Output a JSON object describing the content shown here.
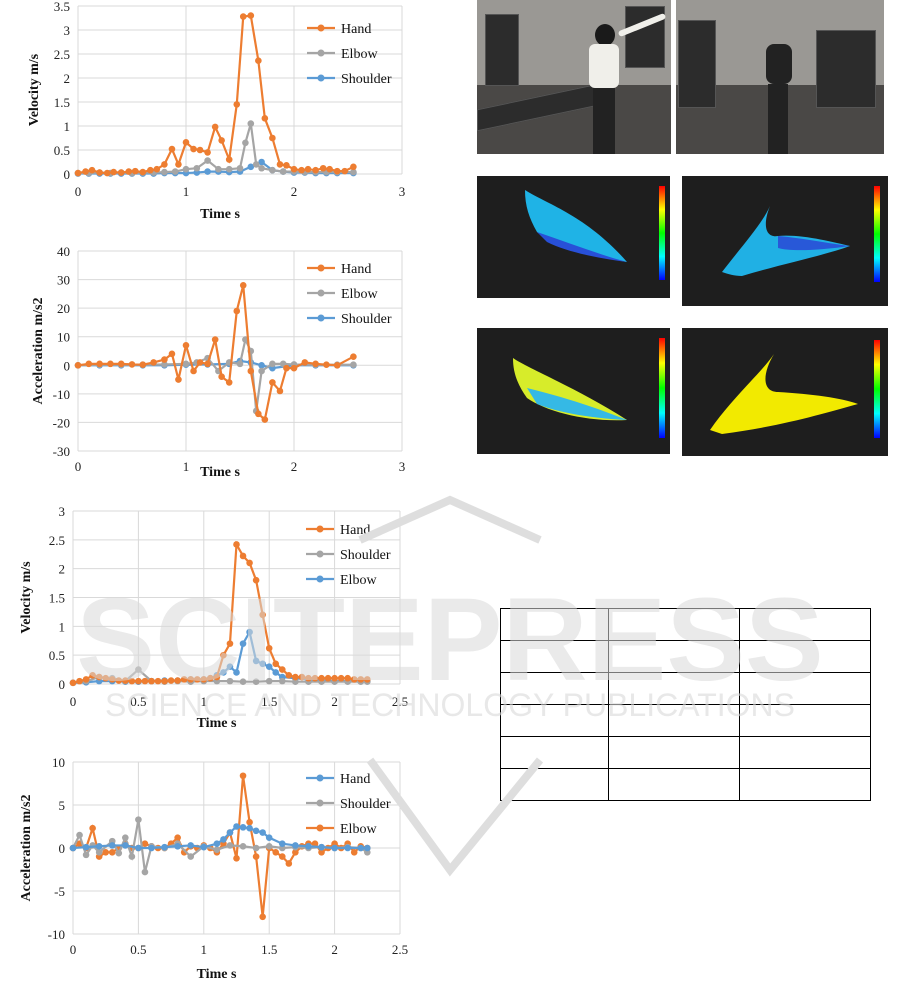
{
  "charts": [
    {
      "type": "line",
      "ylabel": "Velocity   m/s",
      "xlabel": "Time   s",
      "xlim": [
        0,
        3
      ],
      "ylim": [
        0,
        3.5
      ],
      "xticks": [
        0,
        1,
        2,
        3
      ],
      "yticks": [
        0,
        0.5,
        1,
        1.5,
        2,
        2.5,
        3,
        3.5
      ],
      "xtick_labels": [
        "0",
        "1",
        "2",
        "3"
      ],
      "ytick_labels": [
        "0",
        "0.5",
        "1",
        "1.5",
        "2",
        "2.5",
        "3",
        "3.5"
      ],
      "series": [
        {
          "name": "Hand",
          "color": "#ed7d31",
          "x": [
            0,
            0.07,
            0.13,
            0.2,
            0.27,
            0.33,
            0.4,
            0.47,
            0.53,
            0.6,
            0.67,
            0.73,
            0.8,
            0.87,
            0.93,
            1.0,
            1.07,
            1.13,
            1.2,
            1.27,
            1.33,
            1.4,
            1.47,
            1.53,
            1.6,
            1.67,
            1.73,
            1.8,
            1.87,
            1.93,
            2.0,
            2.07,
            2.13,
            2.2,
            2.27,
            2.33,
            2.4,
            2.47,
            2.55
          ],
          "y": [
            0.02,
            0.05,
            0.08,
            0.03,
            0.02,
            0.04,
            0.03,
            0.05,
            0.06,
            0.04,
            0.08,
            0.1,
            0.2,
            0.52,
            0.2,
            0.66,
            0.52,
            0.5,
            0.45,
            0.98,
            0.7,
            0.3,
            1.45,
            3.28,
            3.3,
            2.36,
            1.16,
            0.75,
            0.2,
            0.18,
            0.1,
            0.08,
            0.1,
            0.08,
            0.12,
            0.1,
            0.06,
            0.06,
            0.15
          ]
        },
        {
          "name": "Elbow",
          "color": "#a5a5a5",
          "x": [
            0,
            0.1,
            0.2,
            0.3,
            0.4,
            0.5,
            0.6,
            0.7,
            0.8,
            0.9,
            1.0,
            1.1,
            1.2,
            1.3,
            1.4,
            1.5,
            1.55,
            1.6,
            1.65,
            1.7,
            1.8,
            1.9,
            2.0,
            2.1,
            2.2,
            2.3,
            2.4,
            2.55
          ],
          "y": [
            0.02,
            0.02,
            0.03,
            0.02,
            0.03,
            0.02,
            0.03,
            0.03,
            0.04,
            0.05,
            0.1,
            0.12,
            0.28,
            0.1,
            0.1,
            0.12,
            0.65,
            1.05,
            0.2,
            0.12,
            0.08,
            0.05,
            0.05,
            0.04,
            0.04,
            0.04,
            0.04,
            0.04
          ]
        },
        {
          "name": "Shoulder",
          "color": "#5b9bd5",
          "x": [
            0,
            0.1,
            0.2,
            0.3,
            0.4,
            0.5,
            0.6,
            0.7,
            0.8,
            0.9,
            1.0,
            1.1,
            1.2,
            1.3,
            1.4,
            1.5,
            1.6,
            1.7,
            1.8,
            1.9,
            2.0,
            2.1,
            2.2,
            2.3,
            2.4,
            2.55
          ],
          "y": [
            0.01,
            0.01,
            0.01,
            0.01,
            0.01,
            0.01,
            0.01,
            0.01,
            0.02,
            0.02,
            0.02,
            0.03,
            0.05,
            0.05,
            0.04,
            0.05,
            0.15,
            0.25,
            0.08,
            0.05,
            0.03,
            0.03,
            0.02,
            0.02,
            0.02,
            0.02
          ]
        }
      ]
    },
    {
      "type": "line",
      "ylabel": "Acceleration   m/s2",
      "xlabel": "Time   s",
      "xlim": [
        0,
        3
      ],
      "ylim": [
        -30,
        40
      ],
      "xticks": [
        0,
        1,
        2,
        3
      ],
      "yticks": [
        -30,
        -20,
        -10,
        0,
        10,
        20,
        30,
        40
      ],
      "xtick_labels": [
        "0",
        "1",
        "2",
        "3"
      ],
      "ytick_labels": [
        "-30",
        "-20",
        "-10",
        "0",
        "10",
        "20",
        "30",
        "40"
      ],
      "series": [
        {
          "name": "Hand",
          "color": "#ed7d31",
          "x": [
            0,
            0.1,
            0.2,
            0.3,
            0.4,
            0.5,
            0.6,
            0.7,
            0.8,
            0.87,
            0.93,
            1.0,
            1.07,
            1.13,
            1.2,
            1.27,
            1.33,
            1.4,
            1.47,
            1.53,
            1.6,
            1.67,
            1.73,
            1.8,
            1.87,
            1.93,
            2.0,
            2.1,
            2.2,
            2.3,
            2.4,
            2.55
          ],
          "y": [
            0,
            0.5,
            0.5,
            0.5,
            0.5,
            0.3,
            0.2,
            1,
            2,
            4,
            -5,
            7,
            -2,
            1,
            0.5,
            9,
            -4,
            -6,
            19,
            28,
            -2,
            -17,
            -19,
            -6,
            -9,
            -1,
            -1,
            1,
            0.5,
            0.2,
            0,
            3
          ]
        },
        {
          "name": "Elbow",
          "color": "#a5a5a5",
          "x": [
            0,
            0.2,
            0.4,
            0.6,
            0.8,
            1.0,
            1.1,
            1.2,
            1.3,
            1.4,
            1.5,
            1.55,
            1.6,
            1.65,
            1.7,
            1.8,
            1.9,
            2.0,
            2.2,
            2.4,
            2.55
          ],
          "y": [
            0,
            0.2,
            0.2,
            0.2,
            0.3,
            0.5,
            1,
            2.5,
            -2,
            1,
            0.5,
            9,
            5,
            -16,
            -2,
            0.5,
            0.5,
            0.3,
            0.2,
            0.2,
            0.2
          ]
        },
        {
          "name": "Shoulder",
          "color": "#5b9bd5",
          "x": [
            0,
            0.2,
            0.4,
            0.6,
            0.8,
            1.0,
            1.2,
            1.4,
            1.5,
            1.6,
            1.7,
            1.8,
            2.0,
            2.2,
            2.4,
            2.55
          ],
          "y": [
            0,
            0,
            0,
            0,
            0,
            0.2,
            0.3,
            0.5,
            1.5,
            1,
            0,
            -1,
            0,
            0,
            0,
            0
          ]
        }
      ]
    },
    {
      "type": "line",
      "ylabel": "Velocity   m/s",
      "xlabel": "Time   s",
      "xlim": [
        0,
        2.5
      ],
      "ylim": [
        0,
        3
      ],
      "xticks": [
        0,
        0.5,
        1,
        1.5,
        2,
        2.5
      ],
      "yticks": [
        0,
        0.5,
        1,
        1.5,
        2,
        2.5,
        3
      ],
      "xtick_labels": [
        "0",
        "0.5",
        "1",
        "1.5",
        "2",
        "2.5"
      ],
      "ytick_labels": [
        "0",
        "0.5",
        "1",
        "1.5",
        "2",
        "2.5",
        "3"
      ],
      "series": [
        {
          "name": "Hand",
          "color": "#ed7d31",
          "x": [
            0,
            0.05,
            0.1,
            0.15,
            0.2,
            0.25,
            0.3,
            0.35,
            0.4,
            0.45,
            0.5,
            0.55,
            0.6,
            0.65,
            0.7,
            0.75,
            0.8,
            0.85,
            0.9,
            0.95,
            1.0,
            1.05,
            1.1,
            1.15,
            1.2,
            1.25,
            1.3,
            1.35,
            1.4,
            1.45,
            1.5,
            1.55,
            1.6,
            1.65,
            1.7,
            1.75,
            1.8,
            1.85,
            1.9,
            1.95,
            2.0,
            2.05,
            2.1,
            2.15,
            2.2,
            2.25
          ],
          "y": [
            0.02,
            0.05,
            0.08,
            0.15,
            0.12,
            0.1,
            0.08,
            0.06,
            0.06,
            0.05,
            0.05,
            0.05,
            0.05,
            0.05,
            0.05,
            0.06,
            0.06,
            0.08,
            0.08,
            0.08,
            0.08,
            0.1,
            0.12,
            0.5,
            0.7,
            2.42,
            2.22,
            2.1,
            1.8,
            1.2,
            0.62,
            0.35,
            0.25,
            0.15,
            0.12,
            0.12,
            0.1,
            0.1,
            0.1,
            0.1,
            0.1,
            0.1,
            0.1,
            0.08,
            0.08,
            0.08
          ]
        },
        {
          "name": "Shoulder",
          "color": "#a5a5a5",
          "x": [
            0,
            0.1,
            0.2,
            0.3,
            0.4,
            0.5,
            0.6,
            0.7,
            0.8,
            0.9,
            1.0,
            1.1,
            1.2,
            1.3,
            1.4,
            1.5,
            1.6,
            1.7,
            1.8,
            1.9,
            2.0,
            2.1,
            2.2,
            2.25
          ],
          "y": [
            0.02,
            0.05,
            0.12,
            0.1,
            0.05,
            0.25,
            0.05,
            0.04,
            0.05,
            0.04,
            0.05,
            0.05,
            0.05,
            0.04,
            0.04,
            0.05,
            0.05,
            0.04,
            0.04,
            0.04,
            0.04,
            0.04,
            0.04,
            0.04
          ]
        },
        {
          "name": "Elbow",
          "color": "#5b9bd5",
          "x": [
            0,
            0.1,
            0.2,
            0.3,
            0.4,
            0.5,
            0.6,
            0.7,
            0.8,
            0.9,
            1.0,
            1.05,
            1.1,
            1.15,
            1.2,
            1.25,
            1.3,
            1.35,
            1.4,
            1.45,
            1.5,
            1.55,
            1.6,
            1.7,
            1.8,
            1.9,
            2.0,
            2.1,
            2.2,
            2.25
          ],
          "y": [
            0.02,
            0.03,
            0.05,
            0.05,
            0.04,
            0.04,
            0.05,
            0.06,
            0.06,
            0.08,
            0.08,
            0.1,
            0.15,
            0.2,
            0.3,
            0.2,
            0.7,
            0.9,
            0.4,
            0.35,
            0.3,
            0.2,
            0.12,
            0.1,
            0.08,
            0.06,
            0.05,
            0.05,
            0.05,
            0.05
          ]
        }
      ]
    },
    {
      "type": "line",
      "ylabel": "Acceleration   m/s2",
      "xlabel": "Time   s",
      "xlim": [
        0,
        2.5
      ],
      "ylim": [
        -10,
        10
      ],
      "xticks": [
        0,
        0.5,
        1,
        1.5,
        2,
        2.5
      ],
      "yticks": [
        -10,
        -5,
        0,
        5,
        10
      ],
      "xtick_labels": [
        "0",
        "0.5",
        "1",
        "1.5",
        "2",
        "2.5"
      ],
      "ytick_labels": [
        "-10",
        "-5",
        "0",
        "5",
        "10"
      ],
      "series": [
        {
          "name": "Hand",
          "color": "#5b9bd5",
          "x": [
            0,
            0.1,
            0.2,
            0.3,
            0.4,
            0.5,
            0.6,
            0.7,
            0.8,
            0.9,
            1.0,
            1.1,
            1.15,
            1.2,
            1.25,
            1.3,
            1.35,
            1.4,
            1.45,
            1.5,
            1.6,
            1.7,
            1.8,
            1.9,
            2.0,
            2.1,
            2.2,
            2.25
          ],
          "y": [
            0,
            0.1,
            0.2,
            0.3,
            0.3,
            0,
            0,
            0.1,
            0.2,
            0.3,
            0.1,
            0.5,
            1,
            1.8,
            2.5,
            2.4,
            2.3,
            2,
            1.8,
            1.2,
            0.5,
            0.3,
            0.2,
            0.1,
            0,
            0,
            0,
            0
          ]
        },
        {
          "name": "Shoulder",
          "color": "#a5a5a5",
          "x": [
            0,
            0.05,
            0.1,
            0.15,
            0.2,
            0.3,
            0.35,
            0.4,
            0.45,
            0.5,
            0.55,
            0.6,
            0.7,
            0.8,
            0.9,
            1.0,
            1.1,
            1.2,
            1.3,
            1.4,
            1.5,
            1.6,
            1.7,
            1.8,
            1.9,
            2.0,
            2.1,
            2.2,
            2.25
          ],
          "y": [
            0,
            1.5,
            -0.8,
            0.3,
            -0.5,
            0.8,
            -0.6,
            1.2,
            -1,
            3.3,
            -2.8,
            0.2,
            0,
            0.5,
            -1,
            0.2,
            -0.2,
            0.3,
            0.2,
            0,
            0.2,
            0,
            0.1,
            0,
            0.1,
            0,
            0.1,
            0,
            -0.5
          ]
        },
        {
          "name": "Elbow",
          "color": "#ed7d31",
          "x": [
            0,
            0.05,
            0.1,
            0.15,
            0.2,
            0.25,
            0.3,
            0.35,
            0.4,
            0.45,
            0.5,
            0.55,
            0.6,
            0.65,
            0.7,
            0.75,
            0.8,
            0.85,
            0.9,
            0.95,
            1.0,
            1.05,
            1.1,
            1.15,
            1.2,
            1.25,
            1.3,
            1.35,
            1.4,
            1.45,
            1.5,
            1.55,
            1.6,
            1.65,
            1.7,
            1.75,
            1.8,
            1.85,
            1.9,
            1.95,
            2.0,
            2.05,
            2.1,
            2.15,
            2.2,
            2.25
          ],
          "y": [
            0,
            0.5,
            0,
            2.3,
            -1,
            -0.5,
            -0.5,
            0,
            0.5,
            0,
            0,
            0.5,
            0.2,
            0,
            0,
            0.5,
            1.2,
            -0.5,
            0.2,
            0,
            0.3,
            0,
            -0.5,
            0.5,
            1.8,
            -1.2,
            8.4,
            3,
            -1,
            -8,
            0,
            -0.5,
            -1,
            -1.8,
            -0.5,
            0.2,
            0.5,
            0.5,
            -0.5,
            0,
            0.5,
            0,
            0.5,
            -0.5,
            0.2,
            0
          ]
        }
      ]
    }
  ],
  "table": [
    [
      "",
      "",
      ""
    ],
    [
      "",
      "",
      ""
    ],
    [
      "",
      "",
      ""
    ],
    [
      "",
      "",
      ""
    ],
    [
      "",
      "",
      ""
    ],
    [
      "",
      "",
      ""
    ]
  ],
  "watermark": {
    "line1": "SCITEPRESS",
    "line2": "SCIENCE AND TECHNOLOGY PUBLICATIONS",
    "color": "#d8d8d8"
  }
}
